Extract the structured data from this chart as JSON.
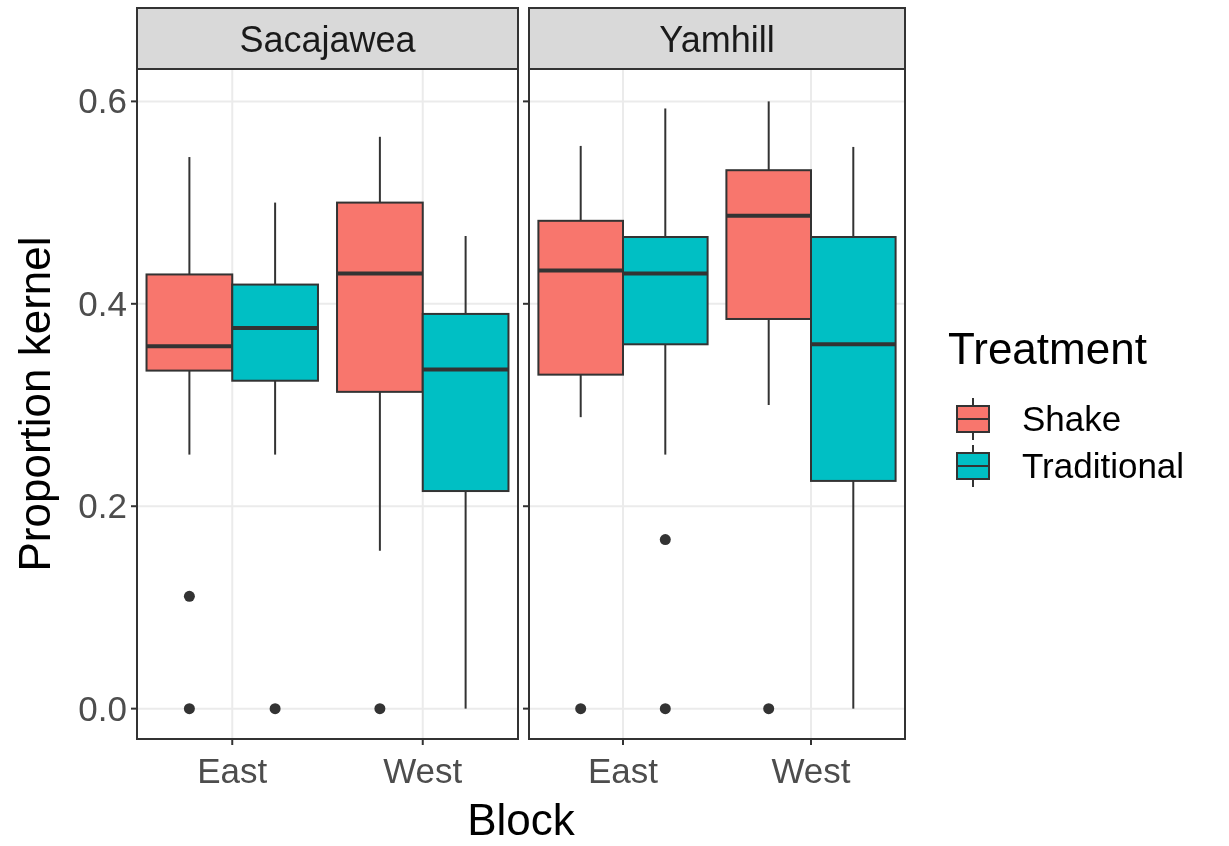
{
  "chart_data": [
    {
      "type": "box",
      "title": "Sacajawea",
      "xlabel": "Block",
      "ylabel": "Proportion kernel",
      "categories": [
        "East",
        "West"
      ],
      "ylim": [
        -0.03,
        0.632
      ],
      "yticks": [
        {
          "value": 0,
          "label": "0.0"
        },
        {
          "value": 0.2,
          "label": "0.2"
        },
        {
          "value": 0.4,
          "label": "0.4"
        },
        {
          "value": 0.6,
          "label": "0.6"
        }
      ],
      "grid": true,
      "legend": false,
      "series": [
        {
          "color": "#f8766d",
          "boxes": [
            {
              "low": 0.251,
              "q1": 0.334,
              "median": 0.358,
              "q3": 0.429,
              "high": 0.545,
              "outliers": [
                0.111,
                0
              ]
            },
            {
              "low": 0.156,
              "q1": 0.313,
              "median": 0.43,
              "q3": 0.5,
              "high": 0.565,
              "outliers": [
                0
              ]
            }
          ]
        },
        {
          "color": "#00bfc4",
          "boxes": [
            {
              "low": 0.251,
              "q1": 0.324,
              "median": 0.376,
              "q3": 0.419,
              "high": 0.5,
              "outliers": [
                0
              ]
            },
            {
              "low": 0,
              "q1": 0.215,
              "median": 0.335,
              "q3": 0.39,
              "high": 0.467
            }
          ]
        }
      ]
    },
    {
      "type": "box",
      "title": "Yamhill",
      "legend_title": "Treatment",
      "categories": [
        "East",
        "West"
      ],
      "ylim": [
        -0.03,
        0.632
      ],
      "yticks": [
        {
          "value": 0,
          "label": null
        },
        {
          "value": 0.2,
          "label": null
        },
        {
          "value": 0.4,
          "label": null
        },
        {
          "value": 0.6,
          "label": null
        }
      ],
      "grid": true,
      "legend": "right",
      "tick_labels": "x",
      "series": [
        {
          "name": "Shake",
          "color": "#f8766d",
          "boxes": [
            {
              "low": 0.288,
              "q1": 0.33,
              "median": 0.433,
              "q3": 0.482,
              "high": 0.556,
              "outliers": [
                0
              ]
            },
            {
              "low": 0.3,
              "q1": 0.385,
              "median": 0.487,
              "q3": 0.532,
              "high": 0.6,
              "outliers": [
                0
              ]
            }
          ]
        },
        {
          "name": "Traditional",
          "color": "#00bfc4",
          "boxes": [
            {
              "low": 0.251,
              "q1": 0.36,
              "median": 0.43,
              "q3": 0.466,
              "high": 0.593,
              "outliers": [
                0.167,
                0
              ]
            },
            {
              "low": 0,
              "q1": 0.225,
              "median": 0.36,
              "q3": 0.466,
              "high": 0.555
            }
          ]
        }
      ]
    }
  ]
}
